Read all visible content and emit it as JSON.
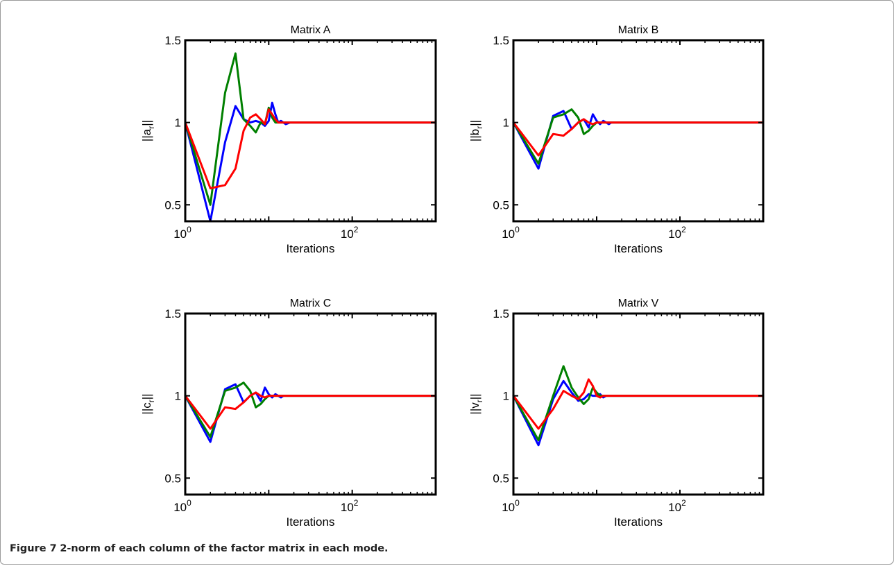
{
  "caption": {
    "label": "Figure 7",
    "text": "2-norm of each column of the factor matrix in each mode."
  },
  "colors": {
    "series": [
      "#0000ff",
      "#008000",
      "#ff0000"
    ],
    "axes": "#000000"
  },
  "chart_data": [
    {
      "type": "line",
      "title": "Matrix A",
      "xlabel": "Iterations",
      "ylabel_base": "||a",
      "ylabel_sub": "r",
      "ylabel_end": "||",
      "x_scale": "log",
      "xlim": [
        1,
        1000
      ],
      "ylim": [
        0.4,
        1.5
      ],
      "yticks": [
        0.5,
        1,
        1.5
      ],
      "ytick_labels": [
        "0.5",
        "1",
        "1.5"
      ],
      "xtick_labels": [
        {
          "base": "10",
          "exp": "0"
        },
        {
          "base": "10",
          "exp": "2"
        }
      ],
      "grid": false,
      "x": [
        1,
        2,
        3,
        4,
        5,
        6,
        7,
        8,
        9,
        10,
        11,
        12,
        13,
        14,
        15,
        16,
        18,
        20,
        25,
        30,
        50,
        100,
        200,
        500,
        1000
      ],
      "series": [
        {
          "values": [
            1.0,
            0.4,
            0.88,
            1.1,
            1.02,
            1.0,
            1.01,
            1.0,
            0.98,
            1.01,
            1.12,
            1.05,
            1.0,
            1.01,
            1.0,
            0.99,
            1.0,
            1.0,
            1.0,
            1.0,
            1.0,
            1.0,
            1.0,
            1.0,
            1.0
          ]
        },
        {
          "values": [
            1.0,
            0.5,
            1.18,
            1.42,
            1.02,
            0.98,
            0.94,
            1.0,
            0.99,
            1.09,
            1.03,
            1.0,
            1.0,
            1.0,
            1.0,
            1.0,
            1.0,
            1.0,
            1.0,
            1.0,
            1.0,
            1.0,
            1.0,
            1.0,
            1.0
          ]
        },
        {
          "values": [
            1.0,
            0.6,
            0.62,
            0.72,
            0.95,
            1.03,
            1.05,
            1.02,
            0.99,
            1.08,
            1.05,
            1.02,
            1.0,
            1.0,
            1.0,
            1.0,
            1.0,
            1.0,
            1.0,
            1.0,
            1.0,
            1.0,
            1.0,
            1.0,
            1.0
          ]
        }
      ]
    },
    {
      "type": "line",
      "title": "Matrix B",
      "xlabel": "Iterations",
      "ylabel_base": "||b",
      "ylabel_sub": "r",
      "ylabel_end": "||",
      "x_scale": "log",
      "xlim": [
        1,
        1000
      ],
      "ylim": [
        0.4,
        1.5
      ],
      "yticks": [
        0.5,
        1,
        1.5
      ],
      "ytick_labels": [
        "0.5",
        "1",
        "1.5"
      ],
      "xtick_labels": [
        {
          "base": "10",
          "exp": "0"
        },
        {
          "base": "10",
          "exp": "2"
        }
      ],
      "grid": false,
      "x": [
        1,
        2,
        3,
        4,
        5,
        6,
        7,
        8,
        9,
        10,
        11,
        12,
        13,
        14,
        15,
        16,
        18,
        20,
        25,
        30,
        50,
        100,
        200,
        500,
        1000
      ],
      "series": [
        {
          "values": [
            1.0,
            0.72,
            1.04,
            1.07,
            0.96,
            1.0,
            1.02,
            0.97,
            1.05,
            1.01,
            0.99,
            1.01,
            1.0,
            0.99,
            1.0,
            1.0,
            1.0,
            1.0,
            1.0,
            1.0,
            1.0,
            1.0,
            1.0,
            1.0,
            1.0
          ]
        },
        {
          "values": [
            1.0,
            0.75,
            1.03,
            1.05,
            1.08,
            1.03,
            0.93,
            0.95,
            0.98,
            1.0,
            1.0,
            1.0,
            1.0,
            1.0,
            1.0,
            1.0,
            1.0,
            1.0,
            1.0,
            1.0,
            1.0,
            1.0,
            1.0,
            1.0,
            1.0
          ]
        },
        {
          "values": [
            1.0,
            0.8,
            0.93,
            0.92,
            0.96,
            1.0,
            1.02,
            1.0,
            0.99,
            1.0,
            1.0,
            1.0,
            1.0,
            1.0,
            1.0,
            1.0,
            1.0,
            1.0,
            1.0,
            1.0,
            1.0,
            1.0,
            1.0,
            1.0,
            1.0
          ]
        }
      ]
    },
    {
      "type": "line",
      "title": "Matrix C",
      "xlabel": "Iterations",
      "ylabel_base": "||c",
      "ylabel_sub": "r",
      "ylabel_end": "||",
      "x_scale": "log",
      "xlim": [
        1,
        1000
      ],
      "ylim": [
        0.4,
        1.5
      ],
      "yticks": [
        0.5,
        1,
        1.5
      ],
      "ytick_labels": [
        "0.5",
        "1",
        "1.5"
      ],
      "xtick_labels": [
        {
          "base": "10",
          "exp": "0"
        },
        {
          "base": "10",
          "exp": "2"
        }
      ],
      "grid": false,
      "x": [
        1,
        2,
        3,
        4,
        5,
        6,
        7,
        8,
        9,
        10,
        11,
        12,
        13,
        14,
        15,
        16,
        18,
        20,
        25,
        30,
        50,
        100,
        200,
        500,
        1000
      ],
      "series": [
        {
          "values": [
            1.0,
            0.72,
            1.04,
            1.07,
            0.96,
            1.0,
            1.02,
            0.97,
            1.05,
            1.01,
            0.99,
            1.01,
            1.0,
            0.99,
            1.0,
            1.0,
            1.0,
            1.0,
            1.0,
            1.0,
            1.0,
            1.0,
            1.0,
            1.0,
            1.0
          ]
        },
        {
          "values": [
            1.0,
            0.75,
            1.03,
            1.05,
            1.08,
            1.03,
            0.93,
            0.95,
            0.98,
            1.0,
            1.0,
            1.0,
            1.0,
            1.0,
            1.0,
            1.0,
            1.0,
            1.0,
            1.0,
            1.0,
            1.0,
            1.0,
            1.0,
            1.0,
            1.0
          ]
        },
        {
          "values": [
            1.0,
            0.8,
            0.93,
            0.92,
            0.96,
            1.0,
            1.02,
            1.0,
            0.99,
            1.0,
            1.0,
            1.0,
            1.0,
            1.0,
            1.0,
            1.0,
            1.0,
            1.0,
            1.0,
            1.0,
            1.0,
            1.0,
            1.0,
            1.0,
            1.0
          ]
        }
      ]
    },
    {
      "type": "line",
      "title": "Matrix V",
      "xlabel": "Iterations",
      "ylabel_base": "||v",
      "ylabel_sub": "r",
      "ylabel_end": "||",
      "x_scale": "log",
      "xlim": [
        1,
        1000
      ],
      "ylim": [
        0.4,
        1.5
      ],
      "yticks": [
        0.5,
        1,
        1.5
      ],
      "ytick_labels": [
        "0.5",
        "1",
        "1.5"
      ],
      "xtick_labels": [
        {
          "base": "10",
          "exp": "0"
        },
        {
          "base": "10",
          "exp": "2"
        }
      ],
      "grid": false,
      "x": [
        1,
        2,
        3,
        4,
        5,
        6,
        7,
        8,
        9,
        10,
        11,
        12,
        13,
        14,
        15,
        16,
        18,
        20,
        25,
        30,
        50,
        100,
        200,
        500,
        1000
      ],
      "series": [
        {
          "values": [
            1.0,
            0.7,
            0.98,
            1.09,
            1.02,
            0.97,
            0.98,
            1.01,
            1.0,
            1.0,
            1.01,
            0.99,
            1.0,
            1.0,
            1.0,
            1.0,
            1.0,
            1.0,
            1.0,
            1.0,
            1.0,
            1.0,
            1.0,
            1.0,
            1.0
          ]
        },
        {
          "values": [
            1.0,
            0.73,
            1.0,
            1.18,
            1.05,
            0.99,
            0.95,
            0.98,
            1.05,
            1.02,
            1.0,
            1.0,
            1.0,
            1.0,
            1.0,
            1.0,
            1.0,
            1.0,
            1.0,
            1.0,
            1.0,
            1.0,
            1.0,
            1.0,
            1.0
          ]
        },
        {
          "values": [
            1.0,
            0.8,
            0.92,
            1.03,
            1.0,
            0.98,
            1.02,
            1.1,
            1.06,
            1.0,
            0.99,
            1.0,
            1.0,
            1.0,
            1.0,
            1.0,
            1.0,
            1.0,
            1.0,
            1.0,
            1.0,
            1.0,
            1.0,
            1.0,
            1.0
          ]
        }
      ]
    }
  ]
}
